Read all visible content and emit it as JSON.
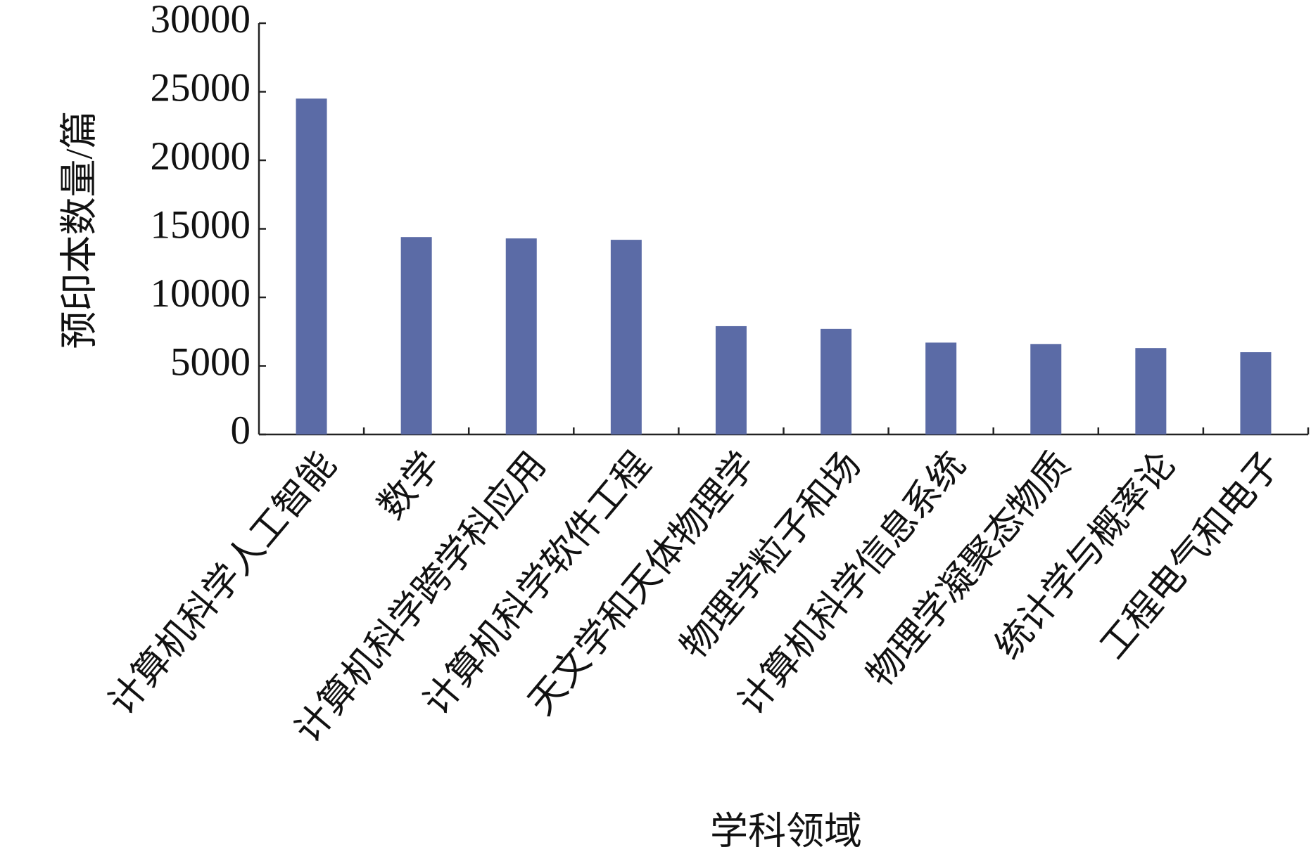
{
  "chart_data": {
    "type": "bar",
    "x_label": "学科领域",
    "y_label": "预印本数量/篇",
    "categories": [
      "计算机科学人工智能",
      "数学",
      "计算机科学跨学科应用",
      "计算机科学软件工程",
      "天文学和天体物理学",
      "物理学粒子和场",
      "计算机科学信息系统",
      "物理学凝聚态物质",
      "统计学与概率论",
      "工程电气和电子"
    ],
    "values": [
      24500,
      14400,
      14300,
      14200,
      7900,
      7700,
      6700,
      6600,
      6300,
      6000
    ],
    "color": "#5b6ba6",
    "ylim": [
      0,
      30000
    ],
    "yticks": [
      0,
      5000,
      10000,
      15000,
      20000,
      25000,
      30000
    ],
    "grid": false
  }
}
